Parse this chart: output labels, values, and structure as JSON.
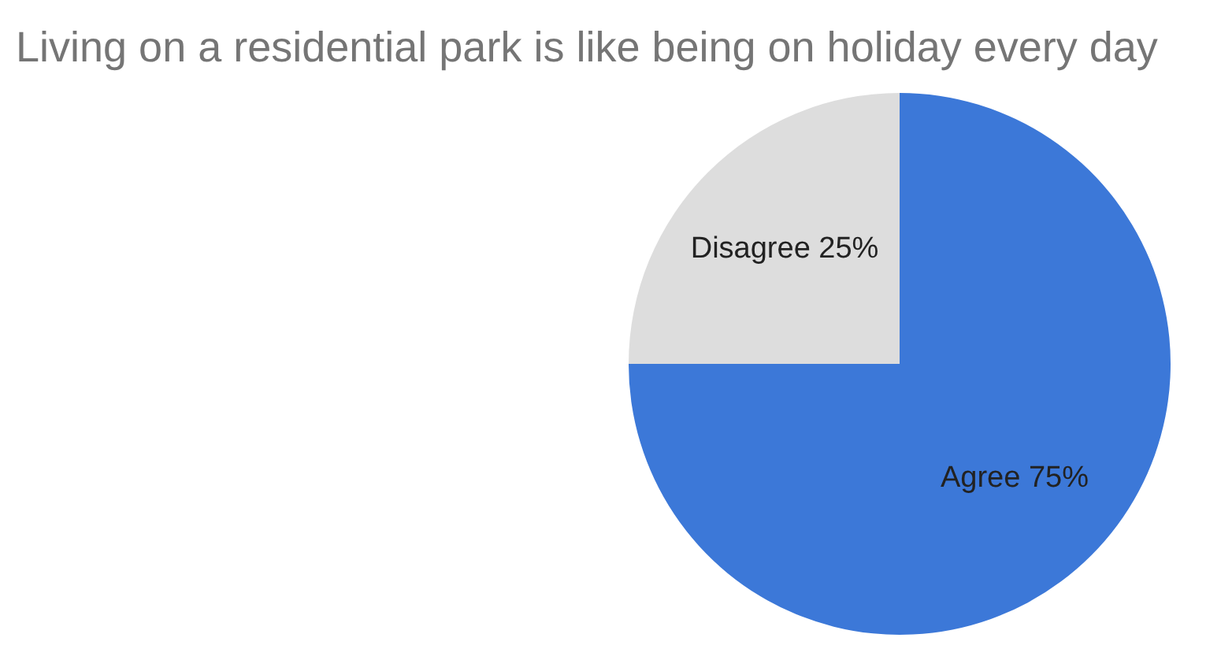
{
  "chart_data": {
    "type": "pie",
    "title": "Living on a residential park is like being on holiday every day",
    "categories": [
      "Agree",
      "Disagree"
    ],
    "values": [
      75,
      25
    ],
    "colors": [
      "#3c78d8",
      "#dddddd"
    ],
    "value_labels": [
      "75%",
      "25%"
    ]
  }
}
